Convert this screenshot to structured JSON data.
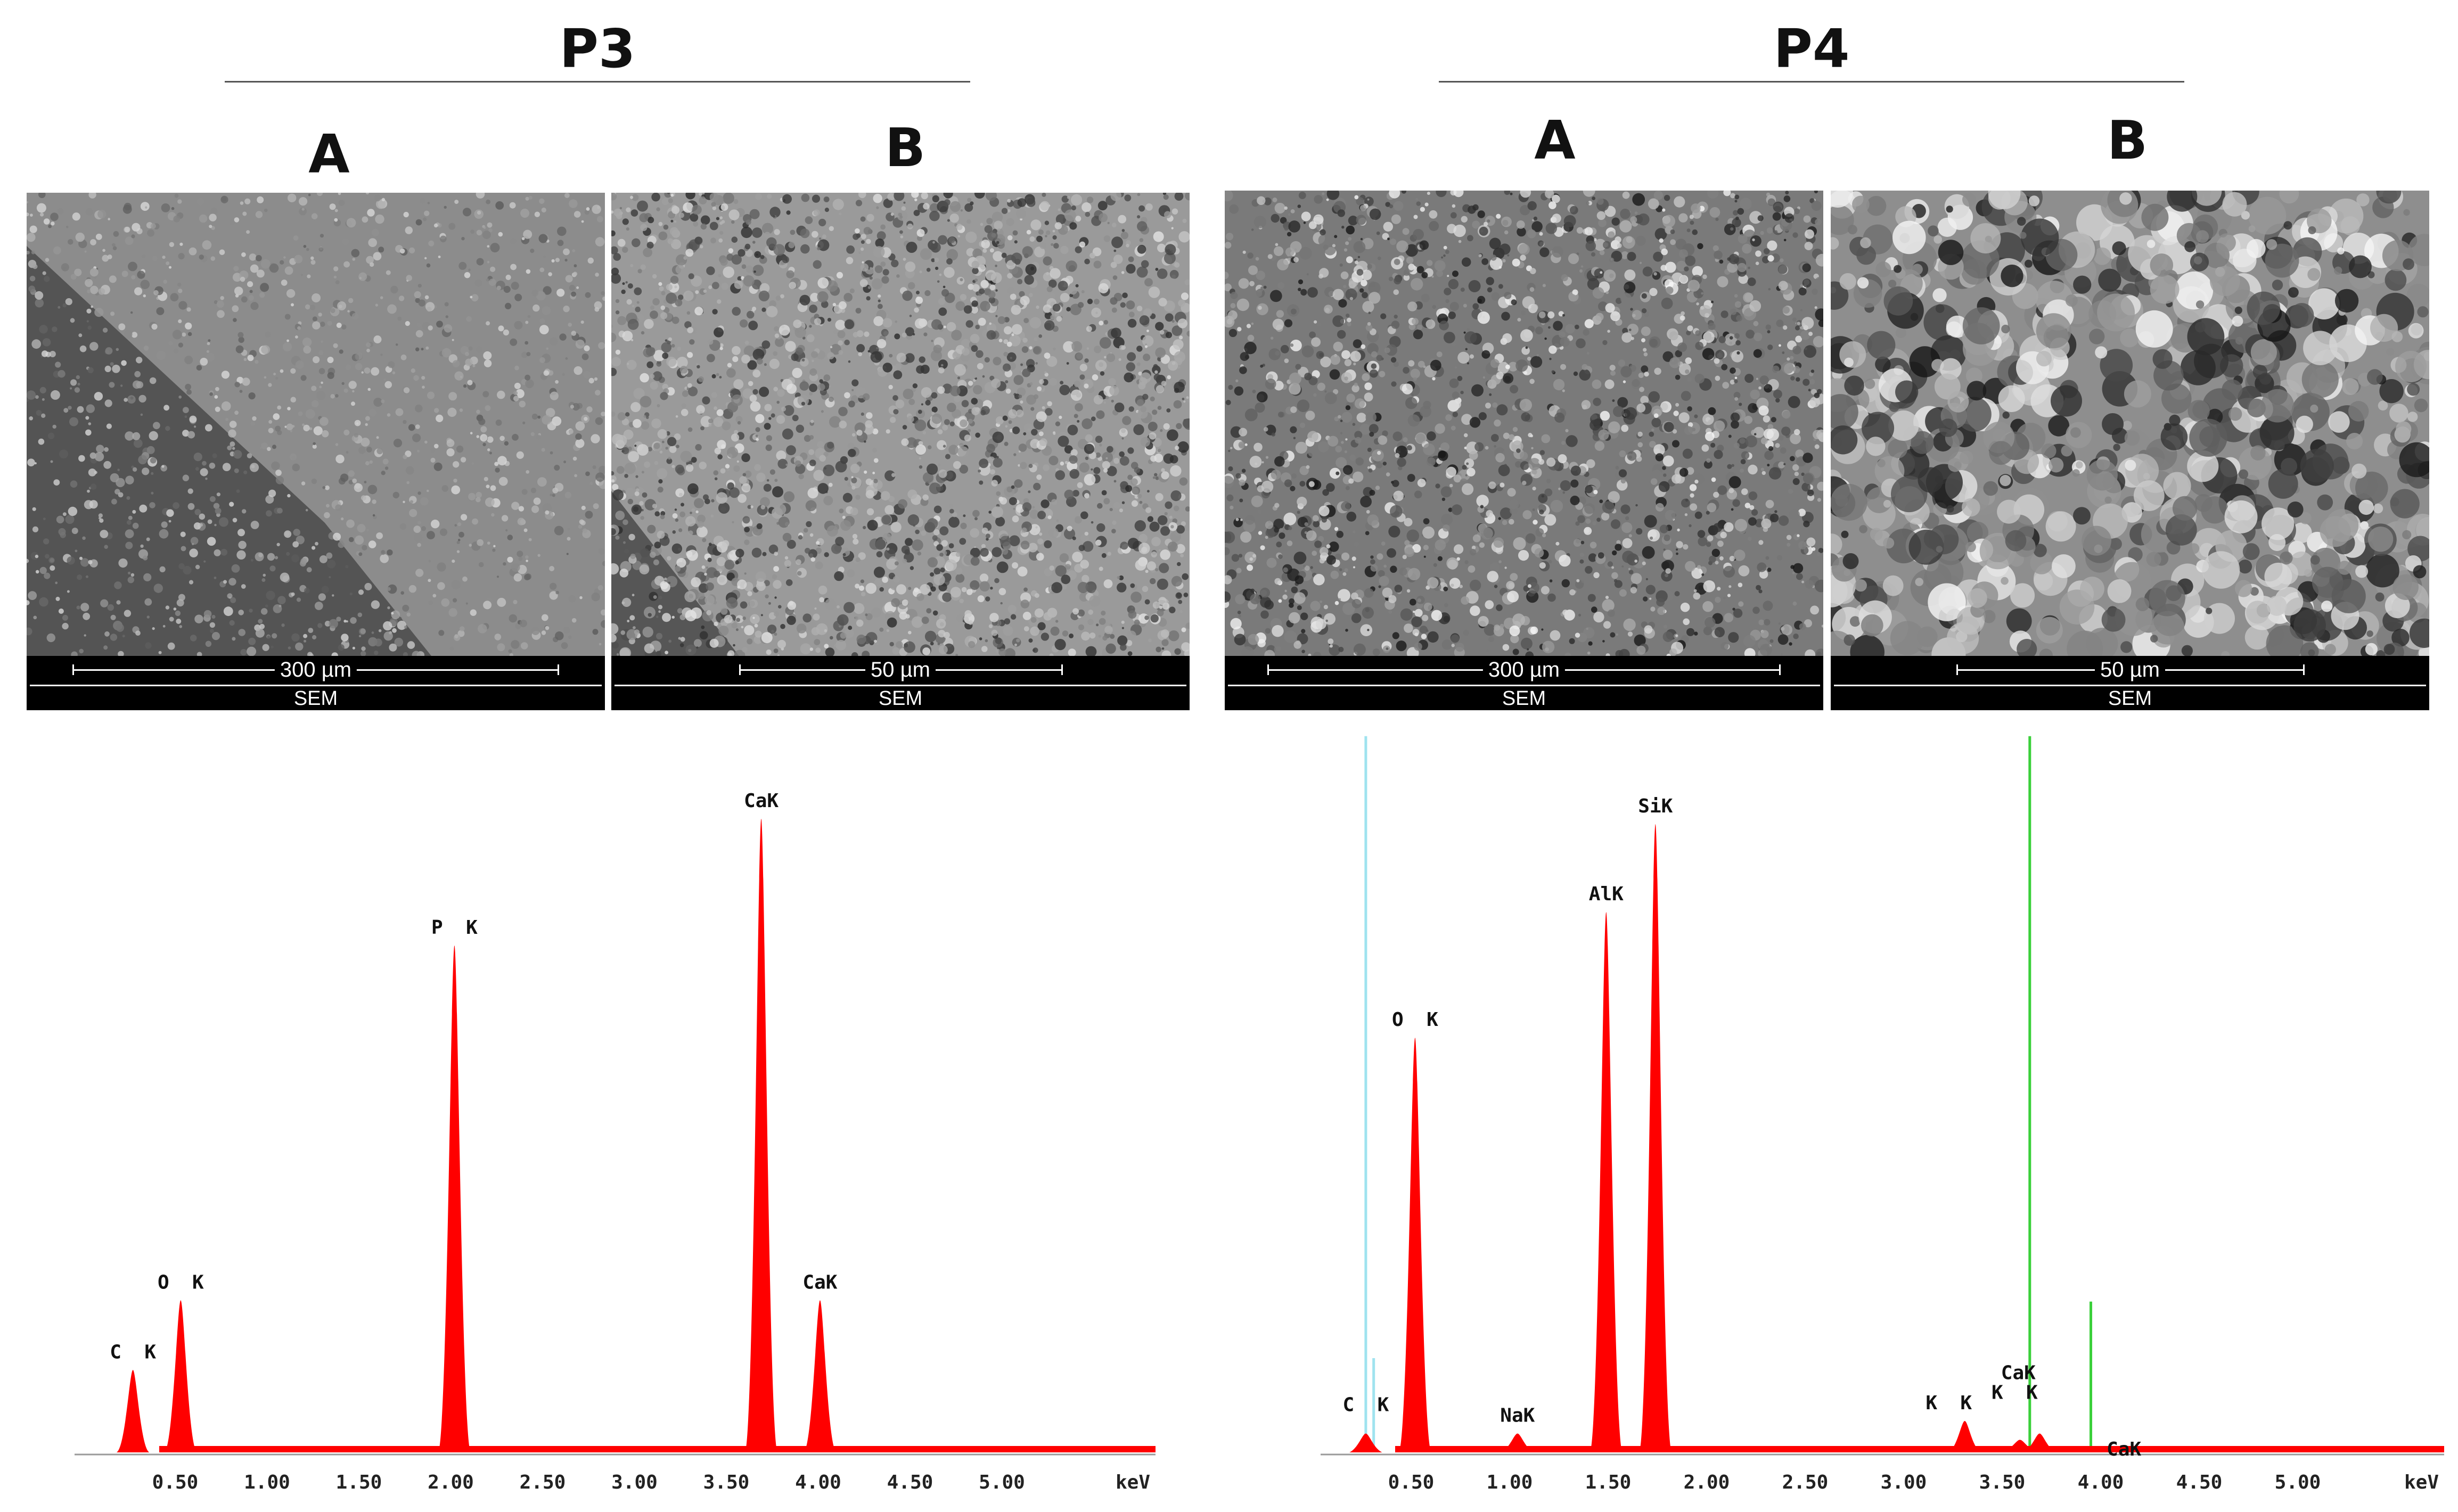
{
  "groups": [
    {
      "id": "P3",
      "title": "P3",
      "panels": [
        {
          "letter": "A",
          "scale_label": "300 µm",
          "footer": "SEM"
        },
        {
          "letter": "B",
          "scale_label": "50 µm",
          "footer": "SEM"
        }
      ],
      "spectrum": {
        "axis_unit": "keV",
        "ticks": [
          "0.50",
          "1.00",
          "1.50",
          "2.00",
          "2.50",
          "3.00",
          "3.50",
          "4.00",
          "4.50",
          "5.00"
        ],
        "peaks": [
          {
            "label": "C  K",
            "kev": 0.27,
            "height": 0.13
          },
          {
            "label": "O  K",
            "kev": 0.53,
            "height": 0.24
          },
          {
            "label": "P  K",
            "kev": 2.02,
            "height": 0.8
          },
          {
            "label": "CaK",
            "kev": 3.69,
            "height": 1.0
          },
          {
            "label": "CaK",
            "kev": 4.01,
            "height": 0.24
          }
        ]
      }
    },
    {
      "id": "P4",
      "title": "P4",
      "panels": [
        {
          "letter": "A",
          "scale_label": "300 µm",
          "footer": "SEM"
        },
        {
          "letter": "B",
          "scale_label": "50 µm",
          "footer": "SEM"
        }
      ],
      "spectrum": {
        "axis_unit": "keV",
        "ticks": [
          "0.50",
          "1.00",
          "1.50",
          "2.00",
          "2.50",
          "3.00",
          "3.50",
          "4.00",
          "4.50",
          "5.00"
        ],
        "peaks": [
          {
            "label": "C  K",
            "kev": 0.27,
            "height": 0.03
          },
          {
            "label": "O  K",
            "kev": 0.52,
            "height": 0.66
          },
          {
            "label": "NaK",
            "kev": 1.04,
            "height": 0.03
          },
          {
            "label": "AlK",
            "kev": 1.49,
            "height": 0.86
          },
          {
            "label": "SiK",
            "kev": 1.74,
            "height": 1.0
          },
          {
            "label": "K  K",
            "kev": 3.31,
            "height": 0.05
          },
          {
            "label": "K  K",
            "kev": 3.59,
            "height": 0.02
          },
          {
            "label": "CaK",
            "kev": 3.69,
            "height": 0.03
          },
          {
            "label": "CaK",
            "kev": 4.01,
            "height": 0.01
          }
        ],
        "markers": [
          {
            "kev": 0.27,
            "color": "#9fe3ef",
            "height": 1.14
          },
          {
            "kev": 0.31,
            "color": "#9fe3ef",
            "height": 0.15
          },
          {
            "kev": 3.64,
            "color": "#3ad03a",
            "height": 1.14
          },
          {
            "kev": 3.95,
            "color": "#3ad03a",
            "height": 0.24
          }
        ]
      }
    }
  ],
  "colors": {
    "spectrum_fill": "#ff0000",
    "sem_p3": "#8a8a8a",
    "sem_p4": "#9c9c9c",
    "sem_footer": "#000000"
  }
}
